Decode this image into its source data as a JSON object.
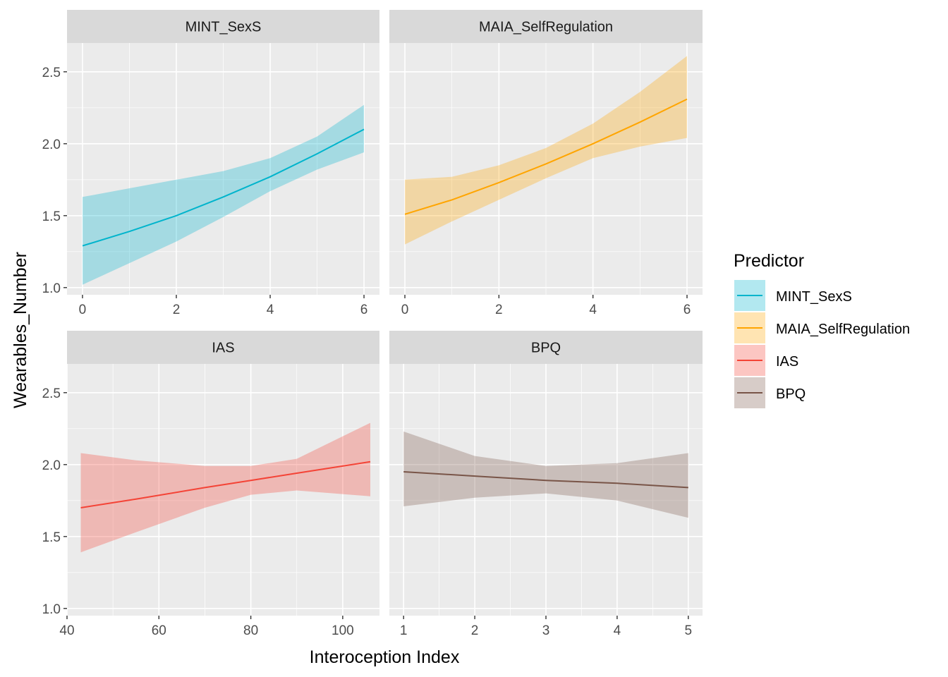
{
  "chart_data": {
    "type": "line",
    "xlabel": "Interoception Index",
    "ylabel": "Wearables_Number",
    "ylim": [
      0.95,
      2.7
    ],
    "y_ticks": [
      1.0,
      1.5,
      2.0,
      2.5
    ],
    "y_tick_labels": [
      "1.0",
      "1.5",
      "2.0",
      "2.5"
    ],
    "grid": true,
    "legend": {
      "title": "Predictor",
      "position": "right",
      "entries": [
        {
          "label": "MINT_SexS",
          "color": "#00B4CC"
        },
        {
          "label": "MAIA_SelfRegulation",
          "color": "#FFA500"
        },
        {
          "label": "IAS",
          "color": "#F44336"
        },
        {
          "label": "BPQ",
          "color": "#795548"
        }
      ]
    },
    "panels": [
      {
        "title": "MINT_SexS",
        "color": "#00B4CC",
        "xlim": [
          -0.33,
          6.33
        ],
        "x_ticks": [
          0,
          2,
          4,
          6
        ],
        "x_tick_labels": [
          "0",
          "2",
          "4",
          "6"
        ],
        "x": [
          0,
          1,
          2,
          3,
          4,
          5,
          6
        ],
        "y": [
          1.29,
          1.39,
          1.5,
          1.63,
          1.77,
          1.93,
          2.1
        ],
        "ymin": [
          1.02,
          1.17,
          1.32,
          1.49,
          1.67,
          1.82,
          1.94
        ],
        "ymax": [
          1.63,
          1.69,
          1.75,
          1.81,
          1.9,
          2.05,
          2.27
        ]
      },
      {
        "title": "MAIA_SelfRegulation",
        "color": "#FFA500",
        "xlim": [
          -0.33,
          6.33
        ],
        "x_ticks": [
          0,
          2,
          4,
          6
        ],
        "x_tick_labels": [
          "0",
          "2",
          "4",
          "6"
        ],
        "x": [
          0,
          1,
          2,
          3,
          4,
          5,
          6
        ],
        "y": [
          1.51,
          1.61,
          1.73,
          1.86,
          2.0,
          2.15,
          2.31
        ],
        "ymin": [
          1.3,
          1.46,
          1.61,
          1.76,
          1.9,
          1.98,
          2.04
        ],
        "ymax": [
          1.75,
          1.77,
          1.85,
          1.97,
          2.14,
          2.36,
          2.61
        ]
      },
      {
        "title": "IAS",
        "color": "#F44336",
        "xlim": [
          40,
          108
        ],
        "x_ticks": [
          40,
          60,
          80,
          100
        ],
        "x_tick_labels": [
          "40",
          "60",
          "80",
          "100"
        ],
        "x": [
          43,
          55,
          70,
          80,
          90,
          106
        ],
        "y": [
          1.7,
          1.76,
          1.84,
          1.89,
          1.94,
          2.02
        ],
        "ymin": [
          1.39,
          1.53,
          1.7,
          1.79,
          1.82,
          1.78
        ],
        "ymax": [
          2.08,
          2.03,
          1.99,
          1.99,
          2.04,
          2.29
        ]
      },
      {
        "title": "BPQ",
        "color": "#795548",
        "xlim": [
          0.8,
          5.2
        ],
        "x_ticks": [
          1,
          2,
          3,
          4,
          5
        ],
        "x_tick_labels": [
          "1",
          "2",
          "3",
          "4",
          "5"
        ],
        "x": [
          1,
          2,
          3,
          4,
          5
        ],
        "y": [
          1.95,
          1.92,
          1.89,
          1.87,
          1.84
        ],
        "ymin": [
          1.71,
          1.77,
          1.8,
          1.75,
          1.63
        ],
        "ymax": [
          2.23,
          2.06,
          1.99,
          2.01,
          2.08
        ]
      }
    ]
  }
}
